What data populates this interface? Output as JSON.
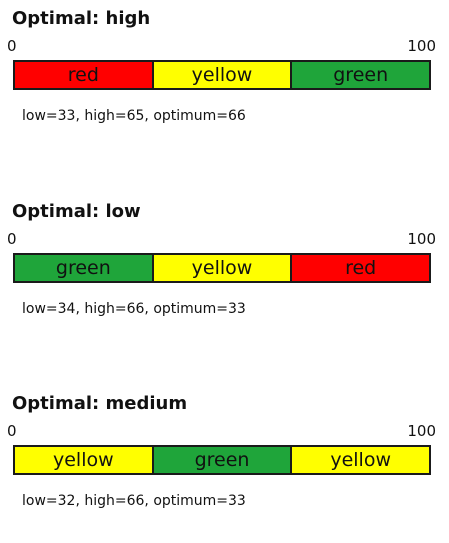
{
  "colors": {
    "red": "#ff0000",
    "yellow": "#ffff00",
    "green": "#1fa53a"
  },
  "scale": {
    "min": "0",
    "max": "100"
  },
  "meters": [
    {
      "title": "Optimal: high",
      "segments": [
        {
          "label": "red",
          "color": "#ff0000"
        },
        {
          "label": "yellow",
          "color": "#ffff00"
        },
        {
          "label": "green",
          "color": "#1fa53a"
        }
      ],
      "caption": "low=33, high=65, optimum=66"
    },
    {
      "title": "Optimal: low",
      "segments": [
        {
          "label": "green",
          "color": "#1fa53a"
        },
        {
          "label": "yellow",
          "color": "#ffff00"
        },
        {
          "label": "red",
          "color": "#ff0000"
        }
      ],
      "caption": "low=34, high=66, optimum=33"
    },
    {
      "title": "Optimal: medium",
      "segments": [
        {
          "label": "yellow",
          "color": "#ffff00"
        },
        {
          "label": "green",
          "color": "#1fa53a"
        },
        {
          "label": "yellow",
          "color": "#ffff00"
        }
      ],
      "caption": "low=32, high=66, optimum=33"
    }
  ]
}
